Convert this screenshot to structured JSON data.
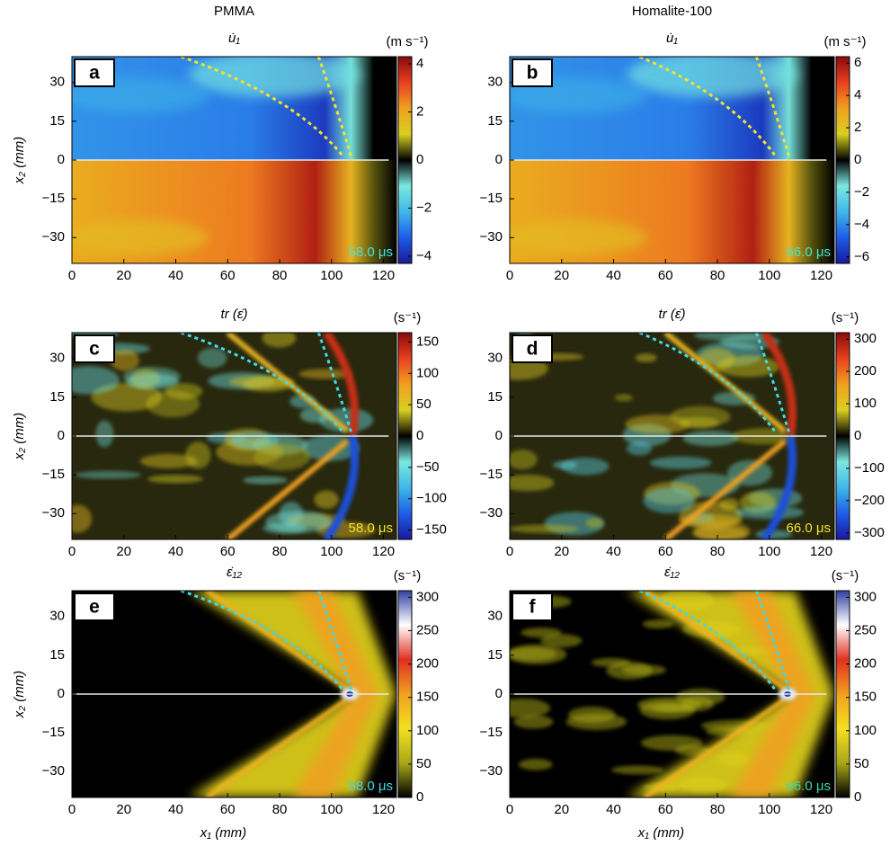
{
  "chart_data": [
    {
      "type": "heatmap",
      "header": "PMMA",
      "panel": "a",
      "title": "u̇₁",
      "unit": "(m s⁻¹)",
      "timestamp": "58.0 μs",
      "timestamp_color": "#3fe6e6",
      "mach_color": "#f2e22a",
      "ylabel": "x₂ (mm)",
      "xlim": [
        0,
        125
      ],
      "xticks": [
        0,
        20,
        40,
        60,
        80,
        100,
        120
      ],
      "ylim": [
        -40,
        40
      ],
      "yticks": [
        {
          "value": -30,
          "label": "−30"
        },
        {
          "value": -15,
          "label": "−15"
        },
        0,
        15,
        30
      ],
      "clim": [
        -4.3,
        4.3
      ],
      "cticks": [
        {
          "value": -4,
          "label": "−4"
        },
        {
          "value": -2,
          "label": "−2"
        },
        0,
        2,
        4
      ],
      "colormap": [
        "#1a1a9a",
        "#1e5ce8",
        "#3fb8e8",
        "#7ae8e0",
        "#000000",
        "#d8d020",
        "#f0a020",
        "#e84020",
        "#8a0a0a"
      ]
    },
    {
      "type": "heatmap",
      "header": "Homalite-100",
      "panel": "b",
      "title": "u̇₁",
      "unit": "(m s⁻¹)",
      "timestamp": "66.0 μs",
      "timestamp_color": "#3fe6c8",
      "mach_color": "#f2e22a",
      "xlim": [
        0,
        125
      ],
      "xticks": [
        0,
        20,
        40,
        60,
        80,
        100,
        120
      ],
      "ylim": [
        -40,
        40
      ],
      "yticks": [
        {
          "value": -30,
          "label": "−30"
        },
        {
          "value": -15,
          "label": "−15"
        },
        0,
        15,
        30
      ],
      "clim": [
        -6.4,
        6.4
      ],
      "cticks": [
        {
          "value": -6,
          "label": "−6"
        },
        {
          "value": -4,
          "label": "−4"
        },
        {
          "value": -2,
          "label": "−2"
        },
        0,
        2,
        4,
        6
      ],
      "colormap": [
        "#1a1a9a",
        "#1e5ce8",
        "#3fb8e8",
        "#7ae8e0",
        "#000000",
        "#d8d020",
        "#f0a020",
        "#e84020",
        "#8a0a0a"
      ]
    },
    {
      "type": "heatmap",
      "panel": "c",
      "title": "tr (ε̇)",
      "unit": "(s⁻¹)",
      "timestamp": "58.0 μs",
      "timestamp_color": "#f2e22a",
      "mach_color": "#3fd8e8",
      "ylabel": "x₂ (mm)",
      "xlim": [
        0,
        125
      ],
      "xticks": [
        0,
        20,
        40,
        60,
        80,
        100,
        120
      ],
      "ylim": [
        -40,
        40
      ],
      "yticks": [
        {
          "value": -30,
          "label": "−30"
        },
        {
          "value": -15,
          "label": "−15"
        },
        0,
        15,
        30
      ],
      "clim": [
        -165,
        165
      ],
      "cticks": [
        {
          "value": -150,
          "label": "−150"
        },
        {
          "value": -100,
          "label": "−100"
        },
        {
          "value": -50,
          "label": "−50"
        },
        0,
        50,
        100,
        150
      ],
      "colormap": [
        "#1a1a9a",
        "#1e5ce8",
        "#3fb8e8",
        "#7ae8e0",
        "#000000",
        "#d8d020",
        "#f0a020",
        "#e84020",
        "#8a0a0a"
      ]
    },
    {
      "type": "heatmap",
      "panel": "d",
      "title": "tr (ε̇)",
      "unit": "(s⁻¹)",
      "timestamp": "66.0 μs",
      "timestamp_color": "#f2e22a",
      "mach_color": "#3fd8e8",
      "xlim": [
        0,
        125
      ],
      "xticks": [
        0,
        20,
        40,
        60,
        80,
        100,
        120
      ],
      "ylim": [
        -40,
        40
      ],
      "yticks": [
        {
          "value": -30,
          "label": "−30"
        },
        {
          "value": -15,
          "label": "−15"
        },
        0,
        15,
        30
      ],
      "clim": [
        -320,
        320
      ],
      "cticks": [
        {
          "value": -300,
          "label": "−300"
        },
        {
          "value": -200,
          "label": "−200"
        },
        {
          "value": -100,
          "label": "−100"
        },
        0,
        100,
        200,
        300
      ],
      "colormap": [
        "#1a1a9a",
        "#1e5ce8",
        "#3fb8e8",
        "#7ae8e0",
        "#000000",
        "#d8d020",
        "#f0a020",
        "#e84020",
        "#8a0a0a"
      ]
    },
    {
      "type": "heatmap",
      "panel": "e",
      "title": "ε̇₁₂",
      "unit": "(s⁻¹)",
      "timestamp": "58.0 μs",
      "timestamp_color": "#3fd8e8",
      "mach_color": "#3fd8e8",
      "ylabel": "x₂ (mm)",
      "xlabel": "x₁ (mm)",
      "xlim": [
        0,
        125
      ],
      "xticks": [
        0,
        20,
        40,
        60,
        80,
        100,
        120
      ],
      "ylim": [
        -40,
        40
      ],
      "yticks": [
        {
          "value": -30,
          "label": "−30"
        },
        {
          "value": -15,
          "label": "−15"
        },
        0,
        15,
        30
      ],
      "clim": [
        0,
        310
      ],
      "cticks": [
        0,
        50,
        100,
        150,
        200,
        250,
        300
      ],
      "colormap": [
        "#000000",
        "#a8a818",
        "#f4e020",
        "#f0a020",
        "#e03020",
        "#ffffff",
        "#3040a0"
      ]
    },
    {
      "type": "heatmap",
      "panel": "f",
      "title": "ε̇₁₂",
      "unit": "(s⁻¹)",
      "timestamp": "66.0 μs",
      "timestamp_color": "#3fd8b0",
      "mach_color": "#3fd8e8",
      "xlabel": "x₁ (mm)",
      "xlim": [
        0,
        125
      ],
      "xticks": [
        0,
        20,
        40,
        60,
        80,
        100,
        120
      ],
      "ylim": [
        -40,
        40
      ],
      "yticks": [
        {
          "value": -30,
          "label": "−30"
        },
        {
          "value": -15,
          "label": "−15"
        },
        0,
        15,
        30
      ],
      "clim": [
        0,
        310
      ],
      "cticks": [
        0,
        50,
        100,
        150,
        200,
        250,
        300
      ],
      "colormap": [
        "#000000",
        "#a8a818",
        "#f4e020",
        "#f0a020",
        "#e03020",
        "#ffffff",
        "#3040a0"
      ]
    }
  ]
}
